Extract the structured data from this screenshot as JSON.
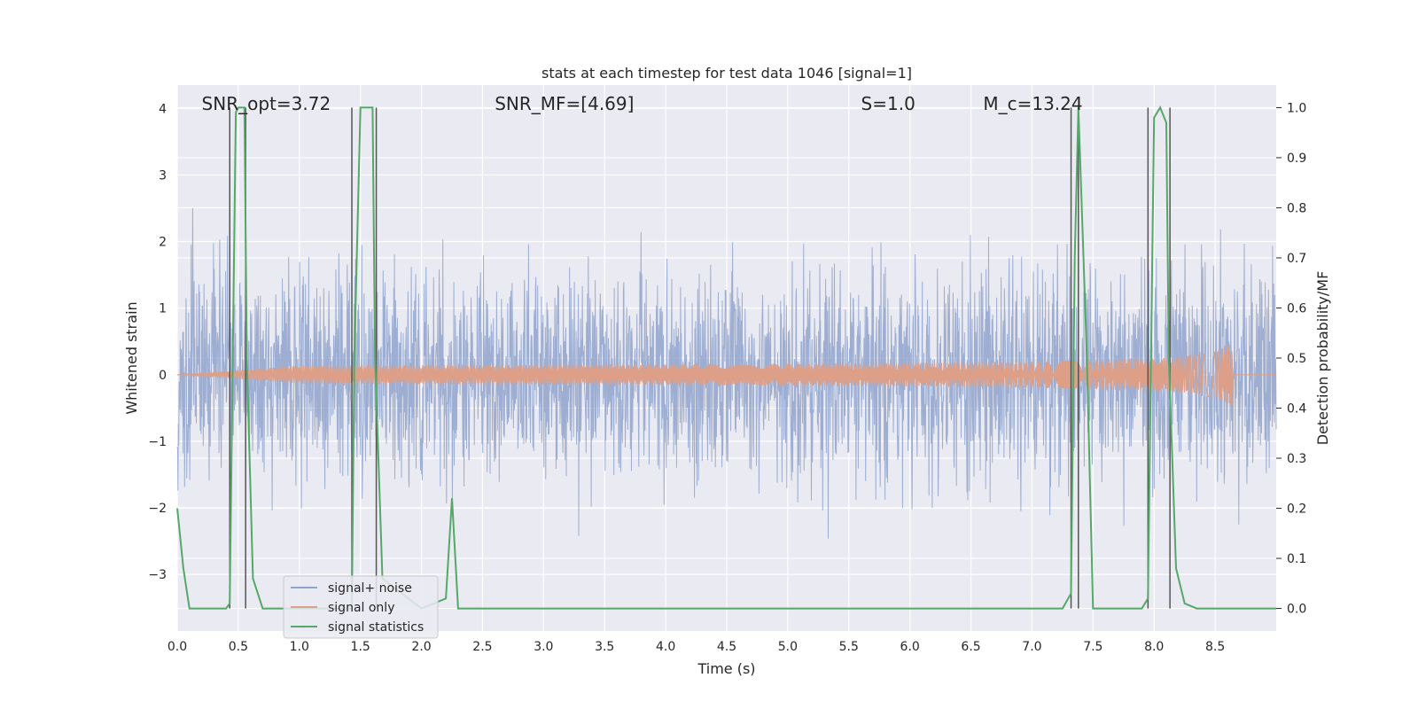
{
  "chart_data": {
    "type": "line",
    "title": "stats at each timestep for test data 1046 [signal=1]",
    "xlabel": "Time (s)",
    "ylabel": "Whitened strain",
    "y2label": "Detection probability/MF",
    "xlim": [
      0.0,
      9.0
    ],
    "ylim": [
      -3.85,
      4.35
    ],
    "y2lim": [
      -0.045,
      1.045
    ],
    "xticks": [
      "0.0",
      "0.5",
      "1.0",
      "1.5",
      "2.0",
      "2.5",
      "3.0",
      "3.5",
      "4.0",
      "4.5",
      "5.0",
      "5.5",
      "6.0",
      "6.5",
      "7.0",
      "7.5",
      "8.0",
      "8.5"
    ],
    "xtick_values": [
      0.0,
      0.5,
      1.0,
      1.5,
      2.0,
      2.5,
      3.0,
      3.5,
      4.0,
      4.5,
      5.0,
      5.5,
      6.0,
      6.5,
      7.0,
      7.5,
      8.0,
      8.5
    ],
    "yticks": [
      "−3",
      "−2",
      "−1",
      "0",
      "1",
      "2",
      "3",
      "4"
    ],
    "ytick_values": [
      -3,
      -2,
      -1,
      0,
      1,
      2,
      3,
      4
    ],
    "y2ticks": [
      "0.0",
      "0.1",
      "0.2",
      "0.3",
      "0.4",
      "0.5",
      "0.6",
      "0.7",
      "0.8",
      "0.9",
      "1.0"
    ],
    "y2tick_values": [
      0.0,
      0.1,
      0.2,
      0.3,
      0.4,
      0.5,
      0.6,
      0.7,
      0.8,
      0.9,
      1.0
    ],
    "grid": true,
    "legend_position": "lower-left",
    "annotations": [
      {
        "text": "SNR_opt=3.72",
        "x": 0.2
      },
      {
        "text": "SNR_MF=[4.69]",
        "x": 2.6
      },
      {
        "text": "S=1.0",
        "x": 5.6
      },
      {
        "text": "M_c=13.24",
        "x": 6.6
      }
    ],
    "series": [
      {
        "name": "signal+ noise",
        "color": "#8fa3cc",
        "description_values": "noise amplitude roughly within [-3.5, 3.9]"
      },
      {
        "name": "signal only",
        "color": "#dd9f87",
        "chirp_end_x": 8.65,
        "chirp_peak_amplitude": 0.6
      },
      {
        "name": "signal statistics",
        "color": "#55a868",
        "axis": "right",
        "x": [
          0.0,
          0.05,
          0.1,
          0.4,
          0.43,
          0.48,
          0.5,
          0.55,
          0.57,
          0.62,
          0.7,
          1.43,
          1.45,
          1.5,
          1.6,
          1.62,
          1.68,
          2.0,
          2.2,
          2.25,
          2.3,
          2.35,
          7.25,
          7.32,
          7.35,
          7.38,
          7.45,
          7.5,
          7.9,
          7.95,
          8.0,
          8.05,
          8.1,
          8.12,
          8.18,
          8.25,
          8.35,
          8.4,
          9.0
        ],
        "values": [
          0.2,
          0.08,
          0.0,
          0.0,
          0.01,
          0.99,
          1.0,
          1.0,
          0.5,
          0.06,
          0.0,
          0.0,
          0.5,
          1.0,
          1.0,
          0.5,
          0.06,
          0.0,
          0.02,
          0.22,
          0.0,
          0.0,
          0.0,
          0.03,
          0.7,
          1.0,
          0.5,
          0.0,
          0.0,
          0.02,
          0.98,
          1.0,
          0.97,
          0.5,
          0.08,
          0.01,
          0.0,
          0.0,
          0.0
        ]
      }
    ],
    "vertical_lines_x": [
      0.43,
      0.56,
      1.43,
      1.63,
      7.32,
      7.38,
      7.95,
      8.13
    ]
  },
  "legend": {
    "items": [
      {
        "label": "signal+ noise",
        "color": "#8fa3cc"
      },
      {
        "label": "signal only",
        "color": "#dd9f87"
      },
      {
        "label": "signal statistics",
        "color": "#55a868"
      }
    ]
  },
  "colors": {
    "plot_background": "#eaeaf2",
    "grid": "#ffffff",
    "vline": "#555555"
  }
}
